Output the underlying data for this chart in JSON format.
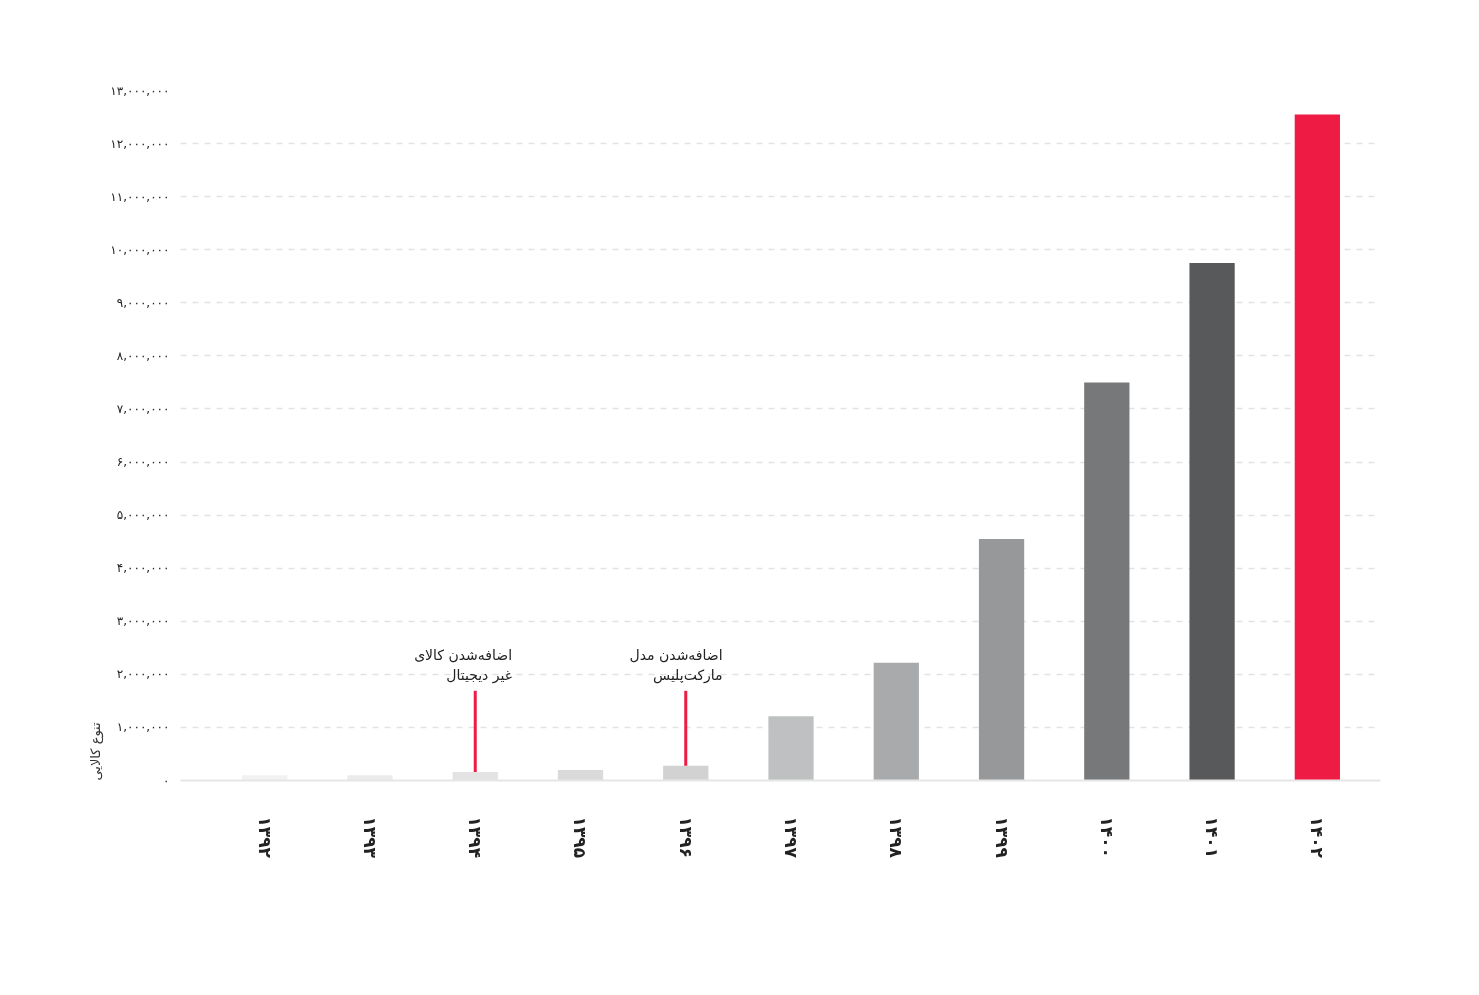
{
  "chart_data": {
    "type": "bar",
    "ylabel": "تنوع کالایی",
    "categories": [
      "۱۳۹۲",
      "۱۳۹۳",
      "۱۳۹۴",
      "۱۳۹۵",
      "۱۳۹۶",
      "۱۳۹۷",
      "۱۳۹۸",
      "۱۳۹۹",
      "۱۴۰۰",
      "۱۴۰۱",
      "۱۴۰۲"
    ],
    "values": [
      100000,
      100000,
      160000,
      200000,
      280000,
      1210000,
      2220000,
      4550000,
      7500000,
      9750000,
      12550000
    ],
    "colors": [
      "#f2f2f2",
      "#ebebeb",
      "#e3e3e3",
      "#dadada",
      "#d2d2d3",
      "#bfc0c1",
      "#a9aaac",
      "#97989a",
      "#77787a",
      "#58595b",
      "#ee1b44"
    ],
    "ylim": [
      0,
      13000000
    ],
    "yticks": [
      {
        "value": 0,
        "label": "۰"
      },
      {
        "value": 1000000,
        "label": "۱,۰۰۰,۰۰۰"
      },
      {
        "value": 2000000,
        "label": "۲,۰۰۰,۰۰۰"
      },
      {
        "value": 3000000,
        "label": "۳,۰۰۰,۰۰۰"
      },
      {
        "value": 4000000,
        "label": "۴,۰۰۰,۰۰۰"
      },
      {
        "value": 5000000,
        "label": "۵,۰۰۰,۰۰۰"
      },
      {
        "value": 6000000,
        "label": "۶,۰۰۰,۰۰۰"
      },
      {
        "value": 7000000,
        "label": "۷,۰۰۰,۰۰۰"
      },
      {
        "value": 8000000,
        "label": "۸,۰۰۰,۰۰۰"
      },
      {
        "value": 9000000,
        "label": "۹,۰۰۰,۰۰۰"
      },
      {
        "value": 10000000,
        "label": "۱۰,۰۰۰,۰۰۰"
      },
      {
        "value": 11000000,
        "label": "۱۱,۰۰۰,۰۰۰"
      },
      {
        "value": 12000000,
        "label": "۱۲,۰۰۰,۰۰۰"
      },
      {
        "value": 13000000,
        "label": "۱۳,۰۰۰,۰۰۰"
      }
    ],
    "grid": "y",
    "annotations": [
      {
        "text": "اضافه‌شدن کالای\nغیر دیجیتال",
        "x": "۱۳۹۴",
        "y": 160000
      },
      {
        "text": "اضافه‌شدن مدل\nمارکت‌پلیس",
        "x": "۱۳۹۶",
        "y": 280000
      }
    ]
  }
}
